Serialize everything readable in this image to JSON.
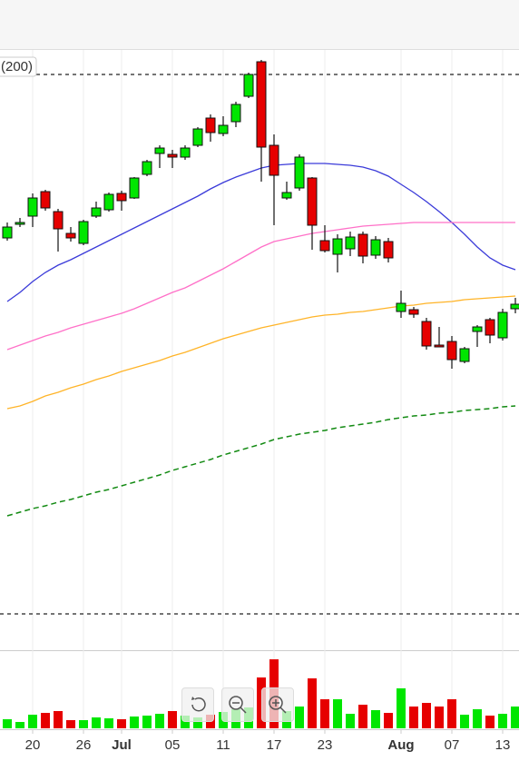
{
  "chart_data": {
    "type": "candlestick",
    "legend_text": "(200)",
    "categories": [
      null,
      null,
      "20",
      null,
      null,
      null,
      "26",
      null,
      null,
      "Jul",
      null,
      null,
      null,
      "05",
      null,
      null,
      null,
      "11",
      null,
      null,
      null,
      "17",
      null,
      null,
      null,
      "23",
      null,
      null,
      null,
      null,
      null,
      "Aug",
      null,
      null,
      null,
      "07",
      null,
      null,
      null,
      "13",
      null
    ],
    "ylim": [
      0,
      660
    ],
    "up_color": "#00e600",
    "down_color": "#e60000",
    "open": [
      453,
      468,
      477,
      504,
      482,
      458,
      447,
      477,
      484,
      502,
      497,
      523,
      546,
      545,
      542,
      555,
      585,
      568,
      581,
      609,
      647,
      555,
      497,
      508,
      519,
      450,
      435,
      441,
      457,
      434,
      449,
      372,
      374,
      361,
      335,
      339,
      317,
      350,
      363,
      343,
      375
    ],
    "high": [
      470,
      475,
      502,
      506,
      485,
      465,
      473,
      493,
      503,
      505,
      520,
      539,
      555,
      550,
      555,
      575,
      589,
      587,
      603,
      635,
      649,
      567,
      515,
      545,
      520,
      467,
      457,
      460,
      460,
      455,
      453,
      395,
      377,
      365,
      355,
      345,
      333,
      357,
      365,
      375,
      387
    ],
    "low": [
      450,
      465,
      465,
      483,
      438,
      449,
      445,
      475,
      482,
      483,
      496,
      521,
      530,
      530,
      539,
      553,
      559,
      565,
      575,
      607,
      515,
      467,
      495,
      505,
      440,
      437,
      415,
      433,
      425,
      430,
      426,
      365,
      365,
      330,
      333,
      309,
      315,
      333,
      337,
      340,
      370
    ],
    "close": [
      465,
      470,
      497,
      486,
      463,
      453,
      471,
      486,
      501,
      494,
      519,
      537,
      552,
      542,
      552,
      573,
      569,
      577,
      600,
      633,
      553,
      522,
      503,
      542,
      467,
      439,
      452,
      454,
      433,
      451,
      431,
      381,
      369,
      334,
      333,
      319,
      331,
      355,
      346,
      371,
      380
    ],
    "moving_averages": [
      {
        "color": "#3b3bd9",
        "dashed": false,
        "values": [
          383,
          393,
          405,
          415,
          423,
          429,
          436,
          443,
          450,
          457,
          464,
          471,
          478,
          485,
          492,
          499,
          507,
          514,
          520,
          525,
          530,
          533,
          534,
          535,
          535,
          535,
          534,
          533,
          531,
          527,
          521,
          512,
          503,
          493,
          482,
          470,
          457,
          443,
          431,
          423,
          418
        ]
      },
      {
        "color": "#ff70c8",
        "dashed": false,
        "values": [
          330,
          335,
          340,
          345,
          349,
          354,
          358,
          362,
          366,
          370,
          375,
          381,
          387,
          393,
          398,
          405,
          412,
          419,
          427,
          435,
          443,
          449,
          452,
          455,
          458,
          460,
          462,
          464,
          466,
          467,
          468,
          469,
          470,
          470,
          470,
          470,
          470,
          470,
          470,
          470,
          470
        ]
      },
      {
        "color": "#ffb428",
        "dashed": false,
        "values": [
          265,
          268,
          273,
          279,
          283,
          288,
          292,
          297,
          301,
          306,
          310,
          314,
          318,
          323,
          327,
          332,
          337,
          342,
          346,
          350,
          354,
          357,
          360,
          363,
          366,
          368,
          369,
          371,
          372,
          374,
          376,
          378,
          379,
          381,
          382,
          383,
          385,
          386,
          387,
          388,
          389
        ]
      },
      {
        "color": "#128a12",
        "dashed": true,
        "values": [
          147,
          151,
          155,
          158,
          162,
          165,
          169,
          173,
          176,
          180,
          184,
          188,
          192,
          197,
          201,
          205,
          209,
          214,
          218,
          222,
          226,
          231,
          234,
          237,
          239,
          241,
          244,
          246,
          248,
          250,
          253,
          255,
          257,
          258,
          260,
          261,
          263,
          264,
          265,
          267,
          268
        ]
      }
    ],
    "reference_lines": [
      633,
      39
    ],
    "volume": {
      "ylim": [
        0,
        85
      ],
      "values": [
        10,
        7,
        15,
        17,
        19,
        9,
        9,
        12,
        11,
        10,
        13,
        14,
        16,
        19,
        14,
        12,
        15,
        18,
        21,
        23,
        56,
        76,
        19,
        24,
        55,
        32,
        32,
        16,
        26,
        20,
        17,
        44,
        24,
        28,
        24,
        32,
        15,
        21,
        14,
        16,
        24
      ]
    },
    "grid": true
  }
}
